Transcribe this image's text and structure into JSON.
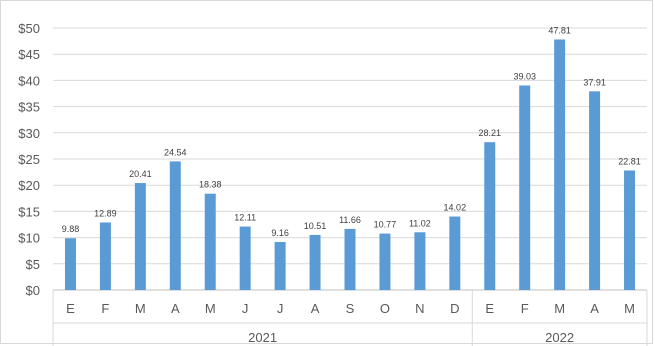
{
  "chart_data": {
    "type": "bar",
    "categories": [
      "E",
      "F",
      "M",
      "A",
      "M",
      "J",
      "J",
      "A",
      "S",
      "O",
      "N",
      "D",
      "E",
      "F",
      "M",
      "A",
      "M"
    ],
    "groups": [
      {
        "label": "2021",
        "count": 12
      },
      {
        "label": "2022",
        "count": 5
      }
    ],
    "values": [
      9.88,
      12.89,
      20.41,
      24.54,
      18.38,
      12.11,
      9.16,
      10.51,
      11.66,
      10.77,
      11.02,
      14.02,
      28.21,
      39.03,
      47.81,
      37.91,
      22.81
    ],
    "data_labels": [
      "9.88",
      "12.89",
      "20.41",
      "24.54",
      "18.38",
      "12.11",
      "9.16",
      "10.51",
      "11.66",
      "10.77",
      "11.02",
      "14.02",
      "28.21",
      "39.03",
      "47.81",
      "37.91",
      "22.81"
    ],
    "y_ticks": [
      "$0",
      "$5",
      "$10",
      "$15",
      "$20",
      "$25",
      "$30",
      "$35",
      "$40",
      "$45",
      "$50"
    ],
    "ylim": [
      0,
      50
    ],
    "grid": true,
    "legend": "none",
    "colors": {
      "bar": "#5b9bd5",
      "grid": "#d9d9d9",
      "axis": "#bfbfbf"
    }
  }
}
